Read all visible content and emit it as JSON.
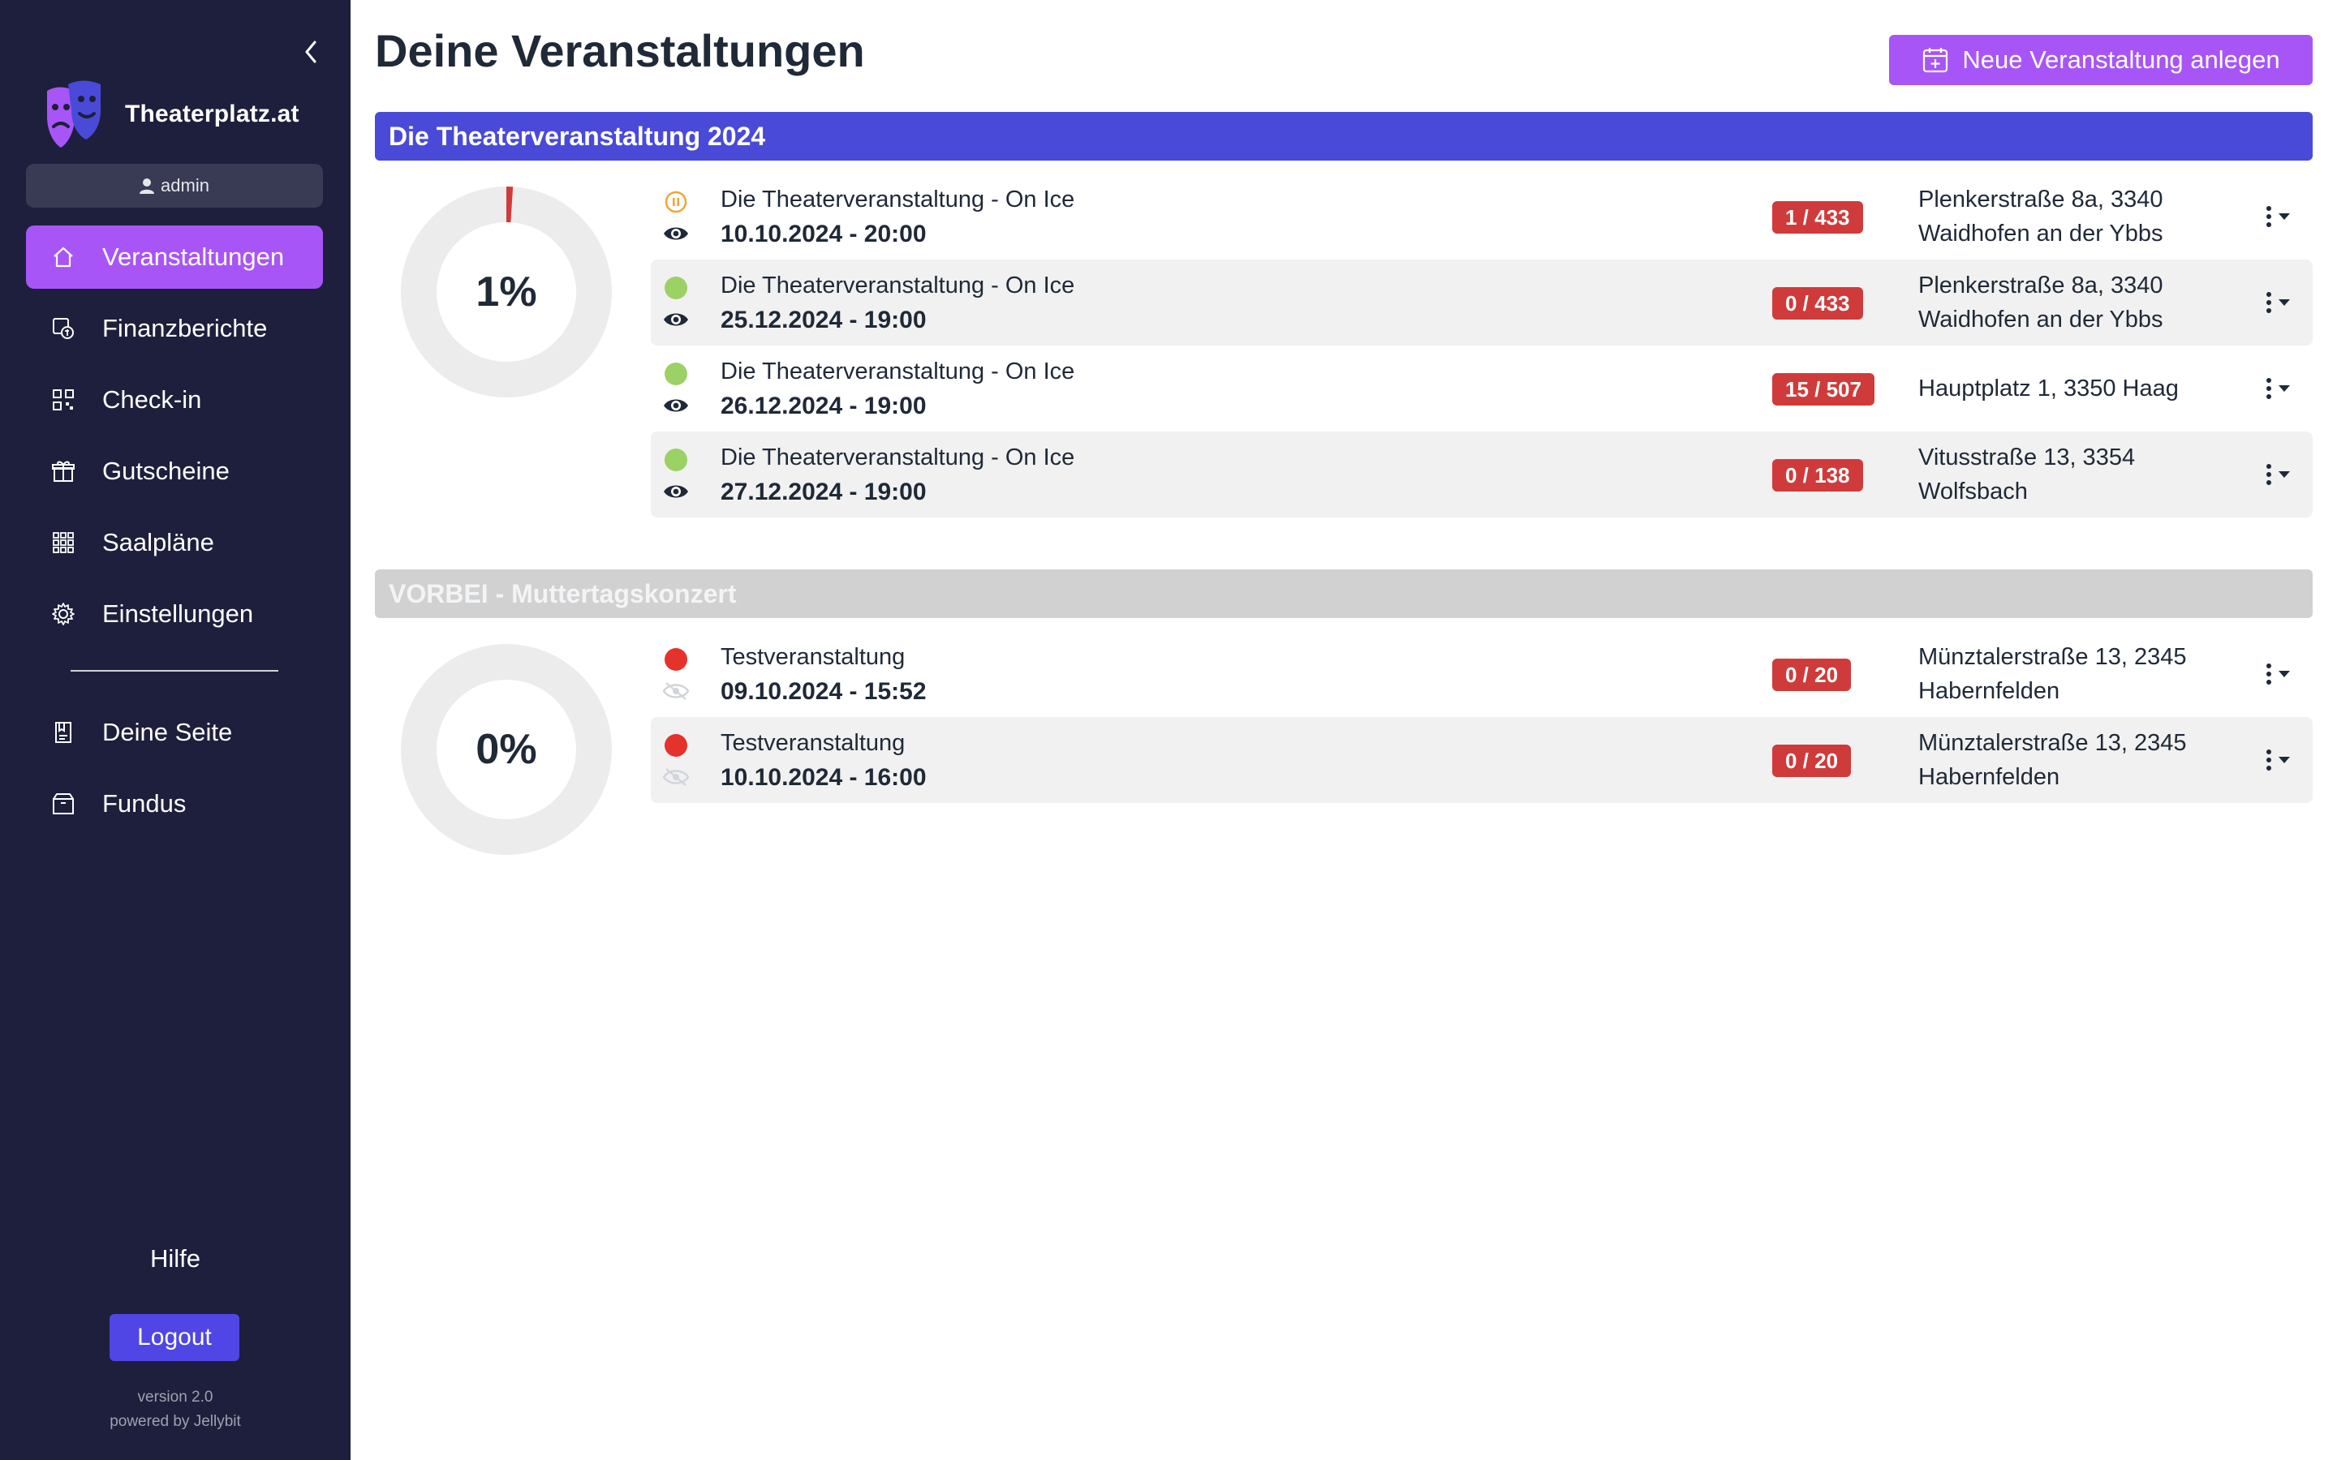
{
  "sidebar": {
    "brand": "Theaterplatz.at",
    "user": "admin",
    "nav": [
      {
        "label": "Veranstaltungen",
        "icon": "home-icon",
        "active": true
      },
      {
        "label": "Finanzberichte",
        "icon": "finance-report-icon",
        "active": false
      },
      {
        "label": "Check-in",
        "icon": "qr-code-icon",
        "active": false
      },
      {
        "label": "Gutscheine",
        "icon": "gift-icon",
        "active": false
      },
      {
        "label": "Saalpläne",
        "icon": "grid-icon",
        "active": false
      },
      {
        "label": "Einstellungen",
        "icon": "gear-icon",
        "active": false
      }
    ],
    "nav_secondary": [
      {
        "label": "Deine Seite",
        "icon": "page-icon"
      },
      {
        "label": "Fundus",
        "icon": "box-icon"
      }
    ],
    "help": "Hilfe",
    "logout": "Logout",
    "version": "version 2.0",
    "powered_by": "powered by Jellybit"
  },
  "header": {
    "title": "Deine Veranstaltungen",
    "new_event_label": "Neue Veranstaltung anlegen"
  },
  "colors": {
    "sidebar_bg": "#1d1f3c",
    "accent_purple": "#a855f7",
    "group_active": "#4a4ad8",
    "badge_red": "#cf3b3b",
    "status_green": "#9bd165",
    "status_red": "#e5322b",
    "status_paused": "#f0a637"
  },
  "groups": [
    {
      "title": "Die Theaterveranstaltung 2024",
      "percent_label": "1%",
      "percent": 1,
      "events": [
        {
          "name": "Die Theaterveranstaltung - On Ice",
          "date": "10.10.2024 - 20:00",
          "seats": "1 / 433",
          "addr1": "Plenkerstraße 8a, 3340",
          "addr2": "Waidhofen an der Ybbs",
          "status": "paused",
          "visible": true
        },
        {
          "name": "Die Theaterveranstaltung - On Ice",
          "date": "25.12.2024 - 19:00",
          "seats": "0 / 433",
          "addr1": "Plenkerstraße 8a, 3340",
          "addr2": "Waidhofen an der Ybbs",
          "status": "active",
          "visible": true
        },
        {
          "name": "Die Theaterveranstaltung - On Ice",
          "date": "26.12.2024 - 19:00",
          "seats": "15 / 507",
          "addr1": "Hauptplatz 1, 3350 Haag",
          "addr2": "",
          "status": "active",
          "visible": true
        },
        {
          "name": "Die Theaterveranstaltung - On Ice",
          "date": "27.12.2024 - 19:00",
          "seats": "0 / 138",
          "addr1": "Vitusstraße 13, 3354",
          "addr2": "Wolfsbach",
          "status": "active",
          "visible": true
        }
      ]
    },
    {
      "title": "VORBEI - Muttertagskonzert",
      "percent_label": "0%",
      "percent": 0,
      "events": [
        {
          "name": "Testveranstaltung",
          "date": "09.10.2024 - 15:52",
          "seats": "0 / 20",
          "addr1": "Münztalerstraße 13, 2345",
          "addr2": "Habernfelden",
          "status": "ended",
          "visible": false
        },
        {
          "name": "Testveranstaltung",
          "date": "10.10.2024 - 16:00",
          "seats": "0 / 20",
          "addr1": "Münztalerstraße 13, 2345",
          "addr2": "Habernfelden",
          "status": "ended",
          "visible": false
        }
      ]
    }
  ]
}
